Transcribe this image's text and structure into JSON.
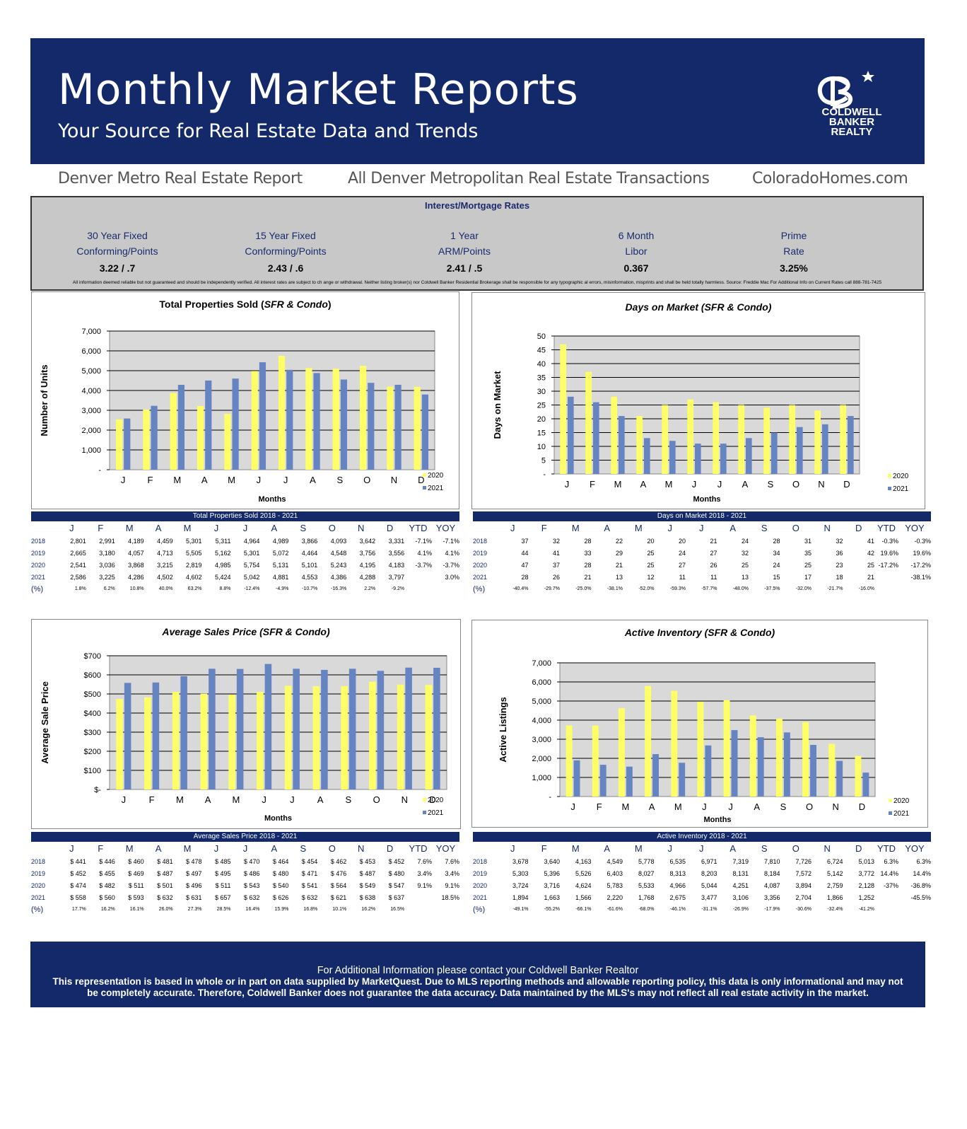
{
  "header": {
    "title": "Monthly Market Reports",
    "subtitle": "Your Source for Real Estate Data and Trends",
    "logo": {
      "line1": "COLDWELL",
      "line2": "BANKER",
      "line3": "REALTY"
    },
    "colors": {
      "navy": "#13296a",
      "yellow": "#ffff66",
      "blue": "#6683c2"
    }
  },
  "subheader": {
    "left": "Denver Metro Real Estate Report",
    "center": "All Denver Metropolitan Real Estate Transactions",
    "right": "ColoradoHomes.com"
  },
  "rates": {
    "title": "Interest/Mortgage Rates",
    "items": [
      {
        "line1": "30 Year Fixed",
        "line2": "Conforming/Points",
        "value": "3.22 /  .7"
      },
      {
        "line1": "15 Year Fixed",
        "line2": "Conforming/Points",
        "value": "2.43 /  .6"
      },
      {
        "line1": "1 Year",
        "line2": "ARM/Points",
        "value": "2.41 / .5"
      },
      {
        "line1": "6 Month",
        "line2": "Libor",
        "value": "0.367"
      },
      {
        "line1": "Prime",
        "line2": "Rate",
        "value": "3.25%"
      }
    ],
    "disclaimer": "All information deemed reliable but not guaranteed and should be independently verified. All interest rates are subject to ch ange or withdrawal. Neither listing broker(s) nor Coldwell Banker Residential Brokerage shall be responsible for any typographic al errors,  misinformation, misprints and shall be held totally harmless. Source: Freddie Mac For Additional Info on Current Rates call 888-781-7425"
  },
  "months": [
    "J",
    "F",
    "M",
    "A",
    "M",
    "J",
    "J",
    "A",
    "S",
    "O",
    "N",
    "D"
  ],
  "chart_data": [
    {
      "id": "sold",
      "type": "bar",
      "title": "Total Properties Sold (",
      "title_italic": "SFR & Condo",
      "title_end": ")",
      "xlabel": "Months",
      "ylabel": "Number of Units",
      "ylim": [
        0,
        7000
      ],
      "ytick_labels": [
        "-",
        "1,000",
        "2,000",
        "3,000",
        "4,000",
        "5,000",
        "6,000",
        "7,000"
      ],
      "categories": [
        "J",
        "F",
        "M",
        "A",
        "M",
        "J",
        "J",
        "A",
        "S",
        "O",
        "N",
        "D"
      ],
      "legend": "right",
      "series": [
        {
          "name": "2020",
          "color": "#ffff66",
          "values": [
            2541,
            3036,
            3868,
            3215,
            2819,
            4985,
            5754,
            5131,
            5101,
            5243,
            4195,
            4183
          ]
        },
        {
          "name": "2021",
          "color": "#6683c2",
          "values": [
            2586,
            3225,
            4286,
            4502,
            4602,
            5424,
            5042,
            4881,
            4553,
            4386,
            4288,
            3797
          ]
        }
      ]
    },
    {
      "id": "dom",
      "type": "bar",
      "title": "",
      "title_italic": "Days on Market (SFR & Condo)",
      "title_end": "",
      "xlabel": "Months",
      "ylabel": "Days on Market",
      "ylim": [
        0,
        50
      ],
      "ytick_labels": [
        "-",
        "5",
        "10",
        "15",
        "20",
        "25",
        "30",
        "35",
        "40",
        "45",
        "50"
      ],
      "categories": [
        "J",
        "F",
        "M",
        "A",
        "M",
        "J",
        "J",
        "A",
        "S",
        "O",
        "N",
        "D"
      ],
      "legend": "right",
      "series": [
        {
          "name": "2020",
          "color": "#ffff66",
          "values": [
            47,
            37,
            28,
            21,
            25,
            27,
            26,
            25,
            24,
            25,
            23,
            25
          ]
        },
        {
          "name": "2021",
          "color": "#6683c2",
          "values": [
            28,
            26,
            21,
            13,
            12,
            11,
            11,
            13,
            15,
            17,
            18,
            21
          ]
        }
      ]
    },
    {
      "id": "price",
      "type": "bar",
      "title": "",
      "title_italic": "Average Sales Price (SFR & Condo)",
      "title_end": "",
      "xlabel": "Months",
      "ylabel": "Average Sale Price",
      "ylim": [
        0,
        700
      ],
      "ytick_labels": [
        "$-",
        "$100",
        "$200",
        "$300",
        "$400",
        "$500",
        "$600",
        "$700"
      ],
      "categories": [
        "J",
        "F",
        "M",
        "A",
        "M",
        "J",
        "J",
        "A",
        "S",
        "O",
        "N",
        "D"
      ],
      "legend": "right",
      "series": [
        {
          "name": "2020",
          "color": "#ffff66",
          "values": [
            474,
            482,
            511,
            501,
            496,
            511,
            543,
            540,
            541,
            564,
            549,
            547
          ]
        },
        {
          "name": "2021",
          "color": "#6683c2",
          "values": [
            558,
            560,
            593,
            632,
            631,
            657,
            632,
            626,
            632,
            621,
            638,
            637
          ]
        }
      ]
    },
    {
      "id": "inventory",
      "type": "bar",
      "title": "",
      "title_italic": "Active Inventory (SFR & Condo)",
      "title_end": "",
      "xlabel": "Months",
      "ylabel": "Active Listings",
      "ylim": [
        0,
        7000
      ],
      "ytick_labels": [
        "-",
        "1,000",
        "2,000",
        "3,000",
        "4,000",
        "5,000",
        "6,000",
        "7,000"
      ],
      "categories": [
        "J",
        "F",
        "M",
        "A",
        "M",
        "J",
        "J",
        "A",
        "S",
        "O",
        "N",
        "D"
      ],
      "legend": "right",
      "series": [
        {
          "name": "2020",
          "color": "#ffff66",
          "values": [
            3724,
            3716,
            4624,
            5783,
            5533,
            4966,
            5044,
            4251,
            4087,
            3894,
            2759,
            2128
          ]
        },
        {
          "name": "2021",
          "color": "#6683c2",
          "values": [
            1894,
            1663,
            1566,
            2220,
            1768,
            2675,
            3477,
            3106,
            3356,
            2704,
            1866,
            1252
          ]
        }
      ]
    }
  ],
  "tables": {
    "sold": {
      "title": "Total Properties Sold    2018 - 2021",
      "headers": [
        "J",
        "F",
        "M",
        "A",
        "M",
        "J",
        "J",
        "A",
        "S",
        "O",
        "N",
        "D",
        "YTD",
        "YOY"
      ],
      "rows": [
        {
          "label": "2018",
          "cells": [
            "2,801",
            "2,991",
            "4,189",
            "4,459",
            "5,301",
            "5,311",
            "4,964",
            "4,989",
            "3,866",
            "4,093",
            "3,642",
            "3,331",
            "-7.1%",
            "-7.1%"
          ]
        },
        {
          "label": "2019",
          "cells": [
            "2,665",
            "3,180",
            "4,057",
            "4,713",
            "5,505",
            "5,162",
            "5,301",
            "5,072",
            "4,464",
            "4,548",
            "3,756",
            "3,556",
            "4.1%",
            "4.1%"
          ]
        },
        {
          "label": "2020",
          "cells": [
            "2,541",
            "3,036",
            "3,868",
            "3,215",
            "2,819",
            "4,985",
            "5,754",
            "5,131",
            "5,101",
            "5,243",
            "4,195",
            "4,183",
            "-3.7%",
            "-3.7%"
          ]
        },
        {
          "label": "2021",
          "cells": [
            "2,586",
            "3,225",
            "4,286",
            "4,502",
            "4,602",
            "5,424",
            "5,042",
            "4,881",
            "4,553",
            "4,386",
            "4,288",
            "3,797",
            "",
            "3.0%"
          ]
        }
      ],
      "pct_label": "(%)",
      "pct": [
        "1.8%",
        "6.2%",
        "10.8%",
        "40.0%",
        "63.2%",
        "8.8%",
        "-12.4%",
        "-4.9%",
        "-10.7%",
        "-16.3%",
        "2.2%",
        "-9.2%",
        "",
        ""
      ]
    },
    "dom": {
      "title": "Days on Market   2018 - 2021",
      "headers": [
        "J",
        "F",
        "M",
        "A",
        "M",
        "J",
        "J",
        "A",
        "S",
        "O",
        "N",
        "D",
        "YTD",
        "YOY"
      ],
      "rows": [
        {
          "label": "2018",
          "cells": [
            "37",
            "32",
            "28",
            "22",
            "20",
            "20",
            "21",
            "24",
            "28",
            "31",
            "32",
            "41",
            "-0.3%",
            "-0.3%"
          ]
        },
        {
          "label": "2019",
          "cells": [
            "44",
            "41",
            "33",
            "29",
            "25",
            "24",
            "27",
            "32",
            "34",
            "35",
            "36",
            "42",
            "19.6%",
            "19.6%"
          ]
        },
        {
          "label": "2020",
          "cells": [
            "47",
            "37",
            "28",
            "21",
            "25",
            "27",
            "26",
            "25",
            "24",
            "25",
            "23",
            "25",
            "-17.2%",
            "-17.2%"
          ]
        },
        {
          "label": "2021",
          "cells": [
            "28",
            "26",
            "21",
            "13",
            "12",
            "11",
            "11",
            "13",
            "15",
            "17",
            "18",
            "21",
            "",
            "-38.1%"
          ]
        }
      ],
      "pct_label": "(%)",
      "pct": [
        "-40.4%",
        "-29.7%",
        "-25.0%",
        "-38.1%",
        "-52.0%",
        "-59.3%",
        "-57.7%",
        "-48.0%",
        "-37.5%",
        "-32.0%",
        "-21.7%",
        "-16.0%",
        "",
        ""
      ]
    },
    "price": {
      "title": "Average Sales Price   2018 - 2021",
      "headers": [
        "J",
        "F",
        "M",
        "A",
        "M",
        "J",
        "J",
        "A",
        "S",
        "O",
        "N",
        "D",
        "YTD",
        "YOY"
      ],
      "rows": [
        {
          "label": "2018",
          "cells": [
            "$ 441",
            "$ 446",
            "$ 460",
            "$ 481",
            "$ 478",
            "$ 485",
            "$ 470",
            "$ 464",
            "$ 454",
            "$ 462",
            "$ 453",
            "$ 452",
            "7.6%",
            "7.6%"
          ]
        },
        {
          "label": "2019",
          "cells": [
            "$ 452",
            "$ 455",
            "$ 469",
            "$ 487",
            "$ 497",
            "$ 495",
            "$ 486",
            "$ 480",
            "$ 471",
            "$ 476",
            "$ 487",
            "$ 480",
            "3.4%",
            "3.4%"
          ]
        },
        {
          "label": "2020",
          "cells": [
            "$ 474",
            "$ 482",
            "$ 511",
            "$ 501",
            "$ 496",
            "$ 511",
            "$ 543",
            "$ 540",
            "$ 541",
            "$ 564",
            "$ 549",
            "$ 547",
            "9.1%",
            "9.1%"
          ]
        },
        {
          "label": "2021",
          "cells": [
            "$ 558",
            "$ 560",
            "$ 593",
            "$ 632",
            "$ 631",
            "$ 657",
            "$ 632",
            "$ 626",
            "$ 632",
            "$ 621",
            "$ 638",
            "$ 637",
            "",
            "18.5%"
          ]
        }
      ],
      "pct_label": "(%)",
      "pct": [
        "17.7%",
        "16.2%",
        "16.1%",
        "26.0%",
        "27.3%",
        "28.5%",
        "16.4%",
        "15.9%",
        "16.8%",
        "10.1%",
        "16.2%",
        "16.5%",
        "",
        ""
      ]
    },
    "inventory": {
      "title": "Active Inventory   2018 - 2021",
      "headers": [
        "J",
        "F",
        "M",
        "A",
        "M",
        "J",
        "J",
        "A",
        "S",
        "O",
        "N",
        "D",
        "YTD",
        "YOY"
      ],
      "rows": [
        {
          "label": "2018",
          "cells": [
            "3,678",
            "3,640",
            "4,163",
            "4,549",
            "5,778",
            "6,535",
            "6,971",
            "7,319",
            "7,810",
            "7,726",
            "6,724",
            "5,013",
            "6.3%",
            "6.3%"
          ]
        },
        {
          "label": "2019",
          "cells": [
            "5,303",
            "5,396",
            "5,526",
            "6,403",
            "8,027",
            "8,313",
            "8,203",
            "8,131",
            "8,184",
            "7,572",
            "5,142",
            "3,772",
            "14.4%",
            "14.4%"
          ]
        },
        {
          "label": "2020",
          "cells": [
            "3,724",
            "3,716",
            "4,624",
            "5,783",
            "5,533",
            "4,966",
            "5,044",
            "4,251",
            "4,087",
            "3,894",
            "2,759",
            "2,128",
            "-37%",
            "-36.8%"
          ]
        },
        {
          "label": "2021",
          "cells": [
            "1,894",
            "1,663",
            "1,566",
            "2,220",
            "1,768",
            "2,675",
            "3,477",
            "3,106",
            "3,356",
            "2,704",
            "1,866",
            "1,252",
            "",
            "-45.5%"
          ]
        }
      ],
      "pct_label": "(%)",
      "pct": [
        "-49.1%",
        "-55.2%",
        "-66.1%",
        "-61.6%",
        "-68.0%",
        "-46.1%",
        "-31.1%",
        "-26.9%",
        "-17.9%",
        "-30.6%",
        "-32.4%",
        "-41.2%",
        "",
        ""
      ]
    }
  },
  "footer": {
    "title": "For Additional Information please contact your Coldwell Banker Realtor",
    "text": "This representation is based in whole or in part on data supplied by MarketQuest.  Due to MLS reporting methods and allowable reporting policy, this data is only informational and may not be completely accurate.  Therefore, Coldwell Banker does not guarantee the data accuracy.  Data maintained by the MLS's may not reflect all real estate activity in the market."
  }
}
